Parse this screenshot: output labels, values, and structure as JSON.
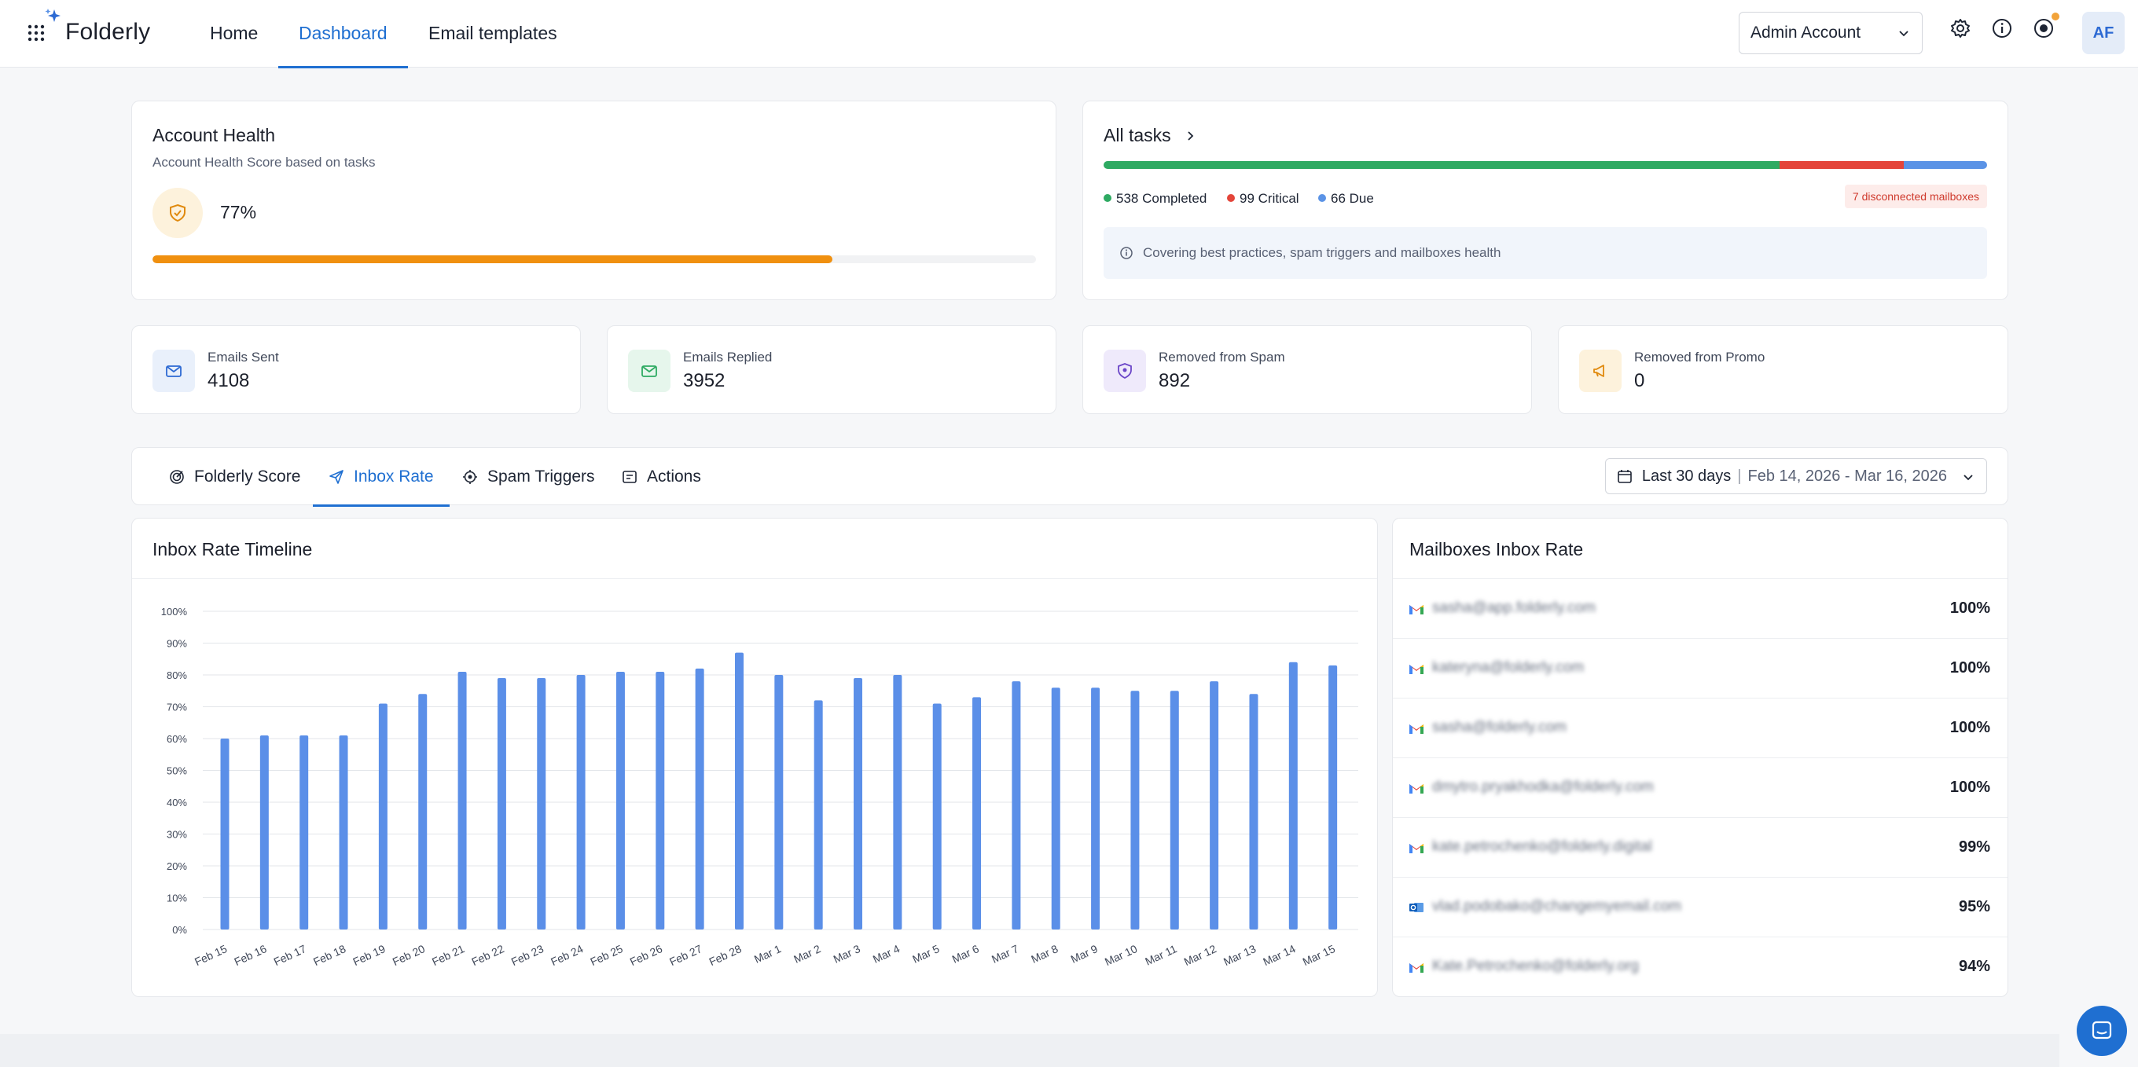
{
  "app": {
    "logo_text": "Folderly"
  },
  "nav": {
    "tabs": [
      {
        "label": "Home"
      },
      {
        "label": "Dashboard"
      },
      {
        "label": "Email templates"
      }
    ],
    "active_tab": "Dashboard",
    "account_select": "Admin Account",
    "avatar_initials": "AF",
    "icons": [
      "apps-grid-icon",
      "gear-icon",
      "info-icon",
      "record-icon"
    ]
  },
  "account_health": {
    "title": "Account Health",
    "subtitle": "Account Health Score based on tasks",
    "score_label": "77%",
    "score": 77,
    "bar_color": "#f0900f"
  },
  "tasks": {
    "title": "All tasks",
    "completed_label": "538 Completed",
    "critical_label": "99 Critical",
    "due_label": "66 Due",
    "counts": {
      "completed": 538,
      "critical": 99,
      "due": 66
    },
    "colors": {
      "completed": "#2eaa62",
      "critical": "#e4453a",
      "due": "#5b93e6"
    },
    "disconnected_label": "7 disconnected mailboxes",
    "info_text": "Covering best practices, spam triggers and mailboxes health"
  },
  "stats": [
    {
      "label": "Emails Sent",
      "value": "4108",
      "icon": "mail-icon",
      "bg": "#e9f0fb",
      "fg": "#2d6ad3"
    },
    {
      "label": "Emails Replied",
      "value": "3952",
      "icon": "mail-reply-icon",
      "bg": "#e6f6ec",
      "fg": "#2eaa62"
    },
    {
      "label": "Removed from Spam",
      "value": "892",
      "icon": "shield-icon",
      "bg": "#efeafb",
      "fg": "#6b46c8"
    },
    {
      "label": "Removed from Promo",
      "value": "0",
      "icon": "megaphone-icon",
      "bg": "#fdf2dc",
      "fg": "#e08a0e"
    }
  ],
  "sub_tabs": [
    {
      "label": "Folderly Score",
      "icon": "score-icon"
    },
    {
      "label": "Inbox Rate",
      "icon": "send-icon"
    },
    {
      "label": "Spam Triggers",
      "icon": "target-icon"
    },
    {
      "label": "Actions",
      "icon": "actions-icon"
    }
  ],
  "active_sub_tab": "Inbox Rate",
  "date_filter": {
    "preset": "Last 30 days",
    "range": "Feb 14, 2026 - Mar 16, 2026"
  },
  "timeline": {
    "title": "Inbox Rate Timeline"
  },
  "chart_data": {
    "type": "bar",
    "title": "Inbox Rate Timeline",
    "categories": [
      "Feb 15",
      "Feb 16",
      "Feb 17",
      "Feb 18",
      "Feb 19",
      "Feb 20",
      "Feb 21",
      "Feb 22",
      "Feb 23",
      "Feb 24",
      "Feb 25",
      "Feb 26",
      "Feb 27",
      "Feb 28",
      "Mar 1",
      "Mar 2",
      "Mar 3",
      "Mar 4",
      "Mar 5",
      "Mar 6",
      "Mar 7",
      "Mar 8",
      "Mar 9",
      "Mar 10",
      "Mar 11",
      "Mar 12",
      "Mar 13",
      "Mar 14",
      "Mar 15"
    ],
    "values": [
      60,
      61,
      61,
      61,
      71,
      74,
      81,
      79,
      79,
      80,
      81,
      81,
      82,
      87,
      80,
      72,
      79,
      80,
      71,
      73,
      78,
      76,
      76,
      75,
      75,
      78,
      74,
      84,
      83
    ],
    "ylim": [
      0,
      100
    ],
    "yticks": [
      "0%",
      "10%",
      "20%",
      "30%",
      "40%",
      "50%",
      "60%",
      "70%",
      "80%",
      "90%",
      "100%"
    ],
    "grid": true,
    "bar_color": "#5b8fe8",
    "xlabel": "",
    "ylabel": ""
  },
  "mailboxes": {
    "title": "Mailboxes Inbox Rate",
    "items": [
      {
        "email": "sasha@app.folderly.com",
        "rate": "100%",
        "icon": "gmail-icon"
      },
      {
        "email": "kateryna@folderly.com",
        "rate": "100%",
        "icon": "gmail-icon"
      },
      {
        "email": "sasha@folderly.com",
        "rate": "100%",
        "icon": "gmail-icon"
      },
      {
        "email": "dmytro.pryakhodka@folderly.com",
        "rate": "100%",
        "icon": "gmail-icon"
      },
      {
        "email": "kate.petrochenko@folderly.digital",
        "rate": "99%",
        "icon": "gmail-icon"
      },
      {
        "email": "vlad.podobako@changemyemail.com",
        "rate": "95%",
        "icon": "outlook-icon"
      },
      {
        "email": "Kate.Petrochenko@folderly.org",
        "rate": "94%",
        "icon": "gmail-icon"
      }
    ]
  }
}
